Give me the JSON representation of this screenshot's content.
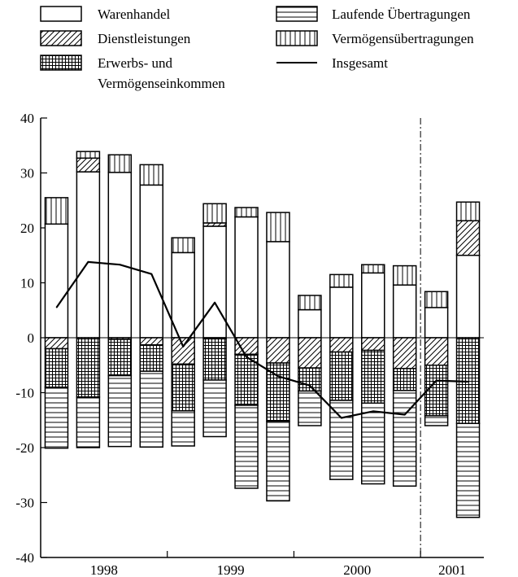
{
  "chart_data": {
    "type": "bar",
    "stacked": true,
    "legend": {
      "placement": "top",
      "entries": [
        {
          "key": "waren",
          "label": "Warenhandel",
          "pattern": "blank"
        },
        {
          "key": "dienst",
          "label": "Dienstleistungen",
          "pattern": "diagonal"
        },
        {
          "key": "erwerb",
          "label": "Erwerbs- und",
          "label2": "Vermögenseinkommen",
          "pattern": "grid"
        },
        {
          "key": "laufend",
          "label": "Laufende Übertragungen",
          "pattern": "horizontal"
        },
        {
          "key": "vermoegen",
          "label": "Vermögensübertragungen",
          "pattern": "vertical"
        },
        {
          "key": "total",
          "label": "Insgesamt",
          "pattern": "line"
        }
      ]
    },
    "ylim": [
      -40,
      40
    ],
    "yticks": [
      40,
      30,
      20,
      10,
      0,
      -10,
      -20,
      -30,
      -40
    ],
    "grid": false,
    "year_labels": [
      "1998",
      "1999",
      "2000",
      "2001"
    ],
    "year_boundaries": [
      4,
      8,
      12
    ],
    "period_divider_after": 12,
    "series": [
      {
        "key": "waren",
        "pos": [
          20.7,
          30.2,
          30.1,
          27.8,
          15.5,
          20.3,
          22.0,
          17.5,
          5.1,
          9.2,
          11.8,
          9.6,
          5.5,
          15.0
        ]
      },
      {
        "key": "dienst",
        "pos": [
          0,
          2.5,
          0,
          0,
          0,
          0.6,
          0,
          0,
          0,
          0,
          0,
          0,
          0,
          6.3
        ],
        "neg": [
          -2.0,
          0,
          -0.3,
          -1.3,
          -4.8,
          -0.2,
          -3.0,
          -4.6,
          -5.5,
          -2.6,
          -2.3,
          -5.6,
          -5.0,
          0
        ]
      },
      {
        "key": "erwerb",
        "neg": [
          -7.0,
          -10.8,
          -6.6,
          -4.8,
          -8.5,
          -7.5,
          -9.3,
          -10.6,
          -4.2,
          -8.8,
          -9.6,
          -4.0,
          -9.2,
          -15.6
        ]
      },
      {
        "key": "laufend",
        "neg": [
          -11.1,
          -9.2,
          -12.9,
          -13.8,
          -6.4,
          -10.3,
          -15.1,
          -14.5,
          -6.3,
          -14.4,
          -14.7,
          -17.4,
          -1.8,
          -17.1
        ]
      },
      {
        "key": "vermoegen",
        "pos": [
          4.8,
          1.2,
          3.2,
          3.7,
          2.7,
          3.5,
          1.7,
          5.3,
          2.6,
          2.3,
          1.5,
          3.5,
          2.9,
          3.4
        ]
      }
    ],
    "total_line": [
      5.5,
      13.8,
      13.3,
      11.6,
      -1.6,
      6.4,
      -3.5,
      -7.0,
      -8.7,
      -14.6,
      -13.4,
      -14.0,
      -7.8,
      -8.0
    ]
  }
}
